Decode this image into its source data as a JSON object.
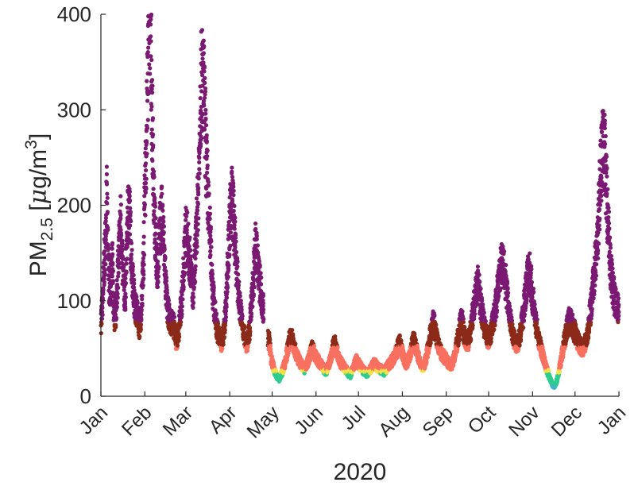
{
  "chart_data": {
    "type": "scatter",
    "title": "",
    "xlabel": "2020",
    "ylabel": {
      "base": "PM",
      "sub": "2.5",
      "unit_prefix": " [",
      "mu": "μ",
      "unit_rest": "g/m",
      "sup": "3",
      "close": "]"
    },
    "xlim": [
      "2020-01-01",
      "2021-01-01"
    ],
    "ylim": [
      0,
      400
    ],
    "x_ticks": [
      {
        "label": "Jan",
        "date": "2020-01-01"
      },
      {
        "label": "Feb",
        "date": "2020-02-01"
      },
      {
        "label": "Mar",
        "date": "2020-03-01"
      },
      {
        "label": "Apr",
        "date": "2020-04-01"
      },
      {
        "label": "May",
        "date": "2020-05-01"
      },
      {
        "label": "Jun",
        "date": "2020-06-01"
      },
      {
        "label": "Jul",
        "date": "2020-07-01"
      },
      {
        "label": "Aug",
        "date": "2020-08-01"
      },
      {
        "label": "Sep",
        "date": "2020-09-01"
      },
      {
        "label": "Oct",
        "date": "2020-10-01"
      },
      {
        "label": "Nov",
        "date": "2020-11-01"
      },
      {
        "label": "Dec",
        "date": "2020-12-01"
      },
      {
        "label": "Jan",
        "date": "2021-01-01"
      }
    ],
    "y_ticks": [
      0,
      100,
      200,
      300,
      400
    ],
    "color_bands": [
      {
        "max": 12,
        "color": "#3cb6c4"
      },
      {
        "max": 24,
        "color": "#2ecc8e"
      },
      {
        "max": 28,
        "color": "#f2e14a"
      },
      {
        "max": 53,
        "color": "#f87060"
      },
      {
        "max": 78,
        "color": "#8c2a1a"
      },
      {
        "max": 1000,
        "color": "#7b1a72"
      }
    ],
    "segments": [
      {
        "start": "2020-01-01",
        "values": [
          80,
          95,
          130,
          160,
          205,
          150,
          110,
          120,
          140,
          90,
          75,
          100,
          130,
          165,
          185,
          140,
          120,
          100,
          150,
          190,
          200,
          160,
          130,
          110,
          95,
          90,
          85,
          70,
          80,
          110,
          140,
          210,
          260,
          330,
          395,
          390,
          300,
          230,
          180,
          150,
          130,
          160,
          180,
          190,
          170,
          140,
          110,
          90,
          85,
          75,
          80,
          75,
          70,
          60,
          55,
          70,
          85,
          100,
          120,
          150,
          175,
          165,
          150,
          140,
          120,
          110,
          130,
          160,
          190,
          225,
          300,
          330,
          335,
          310,
          260,
          230,
          190,
          170,
          140,
          110,
          95,
          80,
          70,
          65,
          60,
          55,
          60,
          70,
          90,
          120,
          150,
          180,
          210,
          205,
          180,
          150,
          130,
          110,
          95,
          85,
          75,
          65,
          60,
          55,
          60,
          70,
          90,
          110,
          130,
          155,
          150,
          140,
          120,
          110,
          100,
          90
        ]
      },
      {
        "start": "2020-04-28",
        "values": [
          60,
          58,
          40,
          35,
          30,
          25,
          22,
          20,
          18,
          22,
          26,
          30,
          35,
          42,
          50,
          58,
          62,
          60,
          55,
          48,
          45,
          40,
          38,
          35,
          33,
          30,
          28,
          32,
          36,
          40,
          45,
          50,
          48,
          44,
          40,
          38,
          36,
          34,
          32,
          30,
          28,
          26,
          30,
          34,
          38,
          45,
          52,
          55,
          50,
          45,
          40,
          36,
          34,
          32,
          30,
          28,
          26,
          24,
          22,
          26,
          30,
          34,
          38,
          36,
          34,
          32,
          30,
          28,
          26,
          25,
          24,
          26,
          28,
          30,
          32,
          34,
          33,
          31,
          30,
          29,
          28,
          27,
          26,
          28,
          30,
          32,
          34,
          36,
          38,
          40,
          44,
          48,
          52,
          55,
          50,
          45,
          40,
          36,
          34,
          38,
          42,
          48,
          55,
          58,
          54,
          48,
          42,
          38,
          34,
          30,
          32,
          36,
          42,
          50,
          58,
          66,
          72,
          78,
          70,
          62,
          55,
          50,
          46,
          44,
          42,
          40,
          38,
          36,
          34,
          32,
          34,
          38,
          44,
          52,
          60,
          68,
          76,
          80,
          70,
          62,
          58,
          56,
          60,
          68,
          78,
          90,
          100,
          110,
          118,
          112,
          100,
          90,
          80,
          72,
          66,
          62,
          60,
          64,
          70,
          78,
          86,
          96,
          108,
          120,
          132,
          140,
          142,
          130,
          118,
          104,
          92,
          82,
          74,
          66,
          60,
          56,
          54,
          58,
          64,
          72,
          82,
          94,
          108,
          122,
          132,
          128,
          116,
          104,
          92,
          80,
          70,
          62,
          56,
          50,
          44,
          38,
          32,
          28,
          24,
          20,
          16,
          12,
          10,
          12,
          16,
          22,
          30,
          38,
          46,
          54,
          62,
          70,
          76,
          80,
          78,
          74,
          70,
          66,
          62,
          58,
          54,
          52,
          50,
          52,
          56,
          62,
          70,
          80,
          92,
          106,
          120,
          136,
          150,
          170,
          200,
          230,
          255,
          262,
          250,
          220,
          190,
          160,
          135,
          120,
          110,
          100,
          95,
          92,
          90
        ]
      }
    ]
  }
}
